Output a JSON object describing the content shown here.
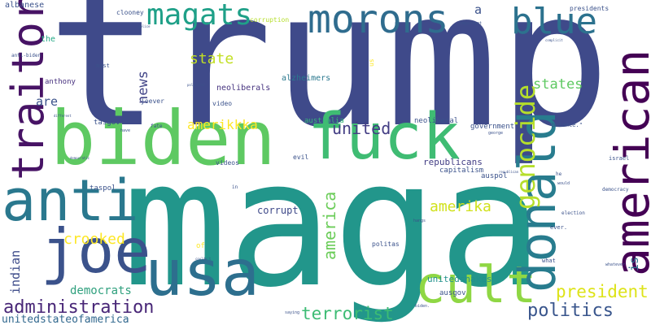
{
  "words": [
    {
      "text": "trump",
      "color": "#3f4a8a",
      "size": 230
    },
    {
      "text": "maga",
      "color": "#22968b",
      "size": 215
    },
    {
      "text": "biden",
      "color": "#5ec962",
      "size": 92
    },
    {
      "text": "fuck",
      "color": "#3fbc73",
      "size": 78
    },
    {
      "text": "usa",
      "color": "#2d6f8e",
      "size": 78
    },
    {
      "text": "joe",
      "color": "#3b528b",
      "size": 75
    },
    {
      "text": "anti",
      "color": "#2a788e",
      "size": 70
    },
    {
      "text": "cult",
      "color": "#8fd744",
      "size": 62
    },
    {
      "text": "donald",
      "color": "#287c8e",
      "size": 62
    },
    {
      "text": "american",
      "color": "#440154",
      "size": 58
    },
    {
      "text": "traitor",
      "color": "#471365",
      "size": 54
    },
    {
      "text": "morons",
      "color": "#2f6c8e",
      "size": 48
    },
    {
      "text": "blue",
      "color": "#2c728e",
      "size": 44
    },
    {
      "text": "magats",
      "color": "#1fa088",
      "size": 36
    },
    {
      "text": "genocide",
      "color": "#b5de2b",
      "size": 32
    },
    {
      "text": "administration",
      "color": "#482677",
      "size": 22
    },
    {
      "text": "politics",
      "color": "#39558c",
      "size": 22
    },
    {
      "text": "president",
      "color": "#dde318",
      "size": 21
    },
    {
      "text": "terrorist",
      "color": "#3dbc74",
      "size": 21
    },
    {
      "text": "america",
      "color": "#6ccd5a",
      "size": 20
    },
    {
      "text": "united",
      "color": "#433d84",
      "size": 20
    },
    {
      "text": "state",
      "color": "#c2df23",
      "size": 18
    },
    {
      "text": "amerika",
      "color": "#d0e11c",
      "size": 18
    },
    {
      "text": "crooked",
      "color": "#fde725",
      "size": 18
    },
    {
      "text": "news",
      "color": "#414487",
      "size": 17
    },
    {
      "text": "states",
      "color": "#5ec962",
      "size": 17
    },
    {
      "text": "amerikkka",
      "color": "#fde725",
      "size": 16
    },
    {
      "text": "indian",
      "color": "#3e4c8a",
      "size": 15
    },
    {
      "text": "are",
      "color": "#3b528b",
      "size": 15
    },
    {
      "text": "is",
      "color": "#2d718e",
      "size": 15
    },
    {
      "text": "democrats",
      "color": "#30a07e",
      "size": 14
    },
    {
      "text": "unitedstateofamerica",
      "color": "#31688e",
      "size": 13
    },
    {
      "text": "a",
      "color": "#3b528b",
      "size": 15
    },
    {
      "text": "corrupt",
      "color": "#3e4989",
      "size": 12
    },
    {
      "text": "republicans",
      "color": "#433e85",
      "size": 11
    },
    {
      "text": "unitedsnakes",
      "color": "#21918c",
      "size": 11
    },
    {
      "text": "alzheimers",
      "color": "#2a788e",
      "size": 10
    },
    {
      "text": "neoliberals",
      "color": "#46337f",
      "size": 10
    },
    {
      "text": "albanese",
      "color": "#3b528b",
      "size": 10
    },
    {
      "text": "the",
      "color": "#22a884",
      "size": 10
    },
    {
      "text": "anthony",
      "color": "#46307e",
      "size": 9
    },
    {
      "text": "tasgov",
      "color": "#3b528b",
      "size": 9
    },
    {
      "text": "taspol",
      "color": "#3b528b",
      "size": 9
    },
    {
      "text": "auspol",
      "color": "#3b528b",
      "size": 9
    },
    {
      "text": "ausgov",
      "color": "#3b528b",
      "size": 9
    },
    {
      "text": "government",
      "color": "#3b528b",
      "size": 9
    },
    {
      "text": "capitalism",
      "color": "#3b528b",
      "size": 9
    },
    {
      "text": "australia",
      "color": "#35b779",
      "size": 9
    },
    {
      "text": "neoliberal",
      "color": "#3b528b",
      "size": 9
    },
    {
      "text": "video",
      "color": "#3b528b",
      "size": 8
    },
    {
      "text": "videos",
      "color": "#3b528b",
      "size": 8
    },
    {
      "text": "evil",
      "color": "#3b528b",
      "size": 8
    },
    {
      "text": "clooney",
      "color": "#3b528b",
      "size": 8
    },
    {
      "text": "corruption",
      "color": "#b5de2b",
      "size": 8
    },
    {
      "text": "presidents",
      "color": "#3b528b",
      "size": 8
    },
    {
      "text": "joever",
      "color": "#3b528b",
      "size": 8
    },
    {
      "text": "most",
      "color": "#3b528b",
      "size": 7
    },
    {
      "text": "anti-biden",
      "color": "#3b528b",
      "size": 6
    },
    {
      "text": "politas",
      "color": "#3b528b",
      "size": 8
    },
    {
      "text": "of",
      "color": "#fde725",
      "size": 9
    },
    {
      "text": "what",
      "color": "#3b528b",
      "size": 7
    },
    {
      "text": "israel",
      "color": "#3b528b",
      "size": 7
    },
    {
      "text": "democracy",
      "color": "#3b528b",
      "size": 6
    },
    {
      "text": "balance.\"",
      "color": "#3b528b",
      "size": 7
    },
    {
      "text": "ever.",
      "color": "#3b528b",
      "size": 7
    },
    {
      "text": "election",
      "color": "#3b528b",
      "size": 6
    },
    {
      "text": "he",
      "color": "#3b528b",
      "size": 6
    },
    {
      "text": "would",
      "color": "#3b528b",
      "size": 5
    },
    {
      "text": "whatever",
      "color": "#3b528b",
      "size": 5
    },
    {
      "text": "fate",
      "color": "#3b528b",
      "size": 6
    },
    {
      "text": "have",
      "color": "#3b528b",
      "size": 5
    },
    {
      "text": "in",
      "color": "#3b528b",
      "size": 6
    },
    {
      "text": "us",
      "color": "#fde725",
      "size": 8
    },
    {
      "text": "hangs",
      "color": "#3b528b",
      "size": 5
    },
    {
      "text": "important",
      "color": "#3b528b",
      "size": 5
    },
    {
      "text": "biden.",
      "color": "#3b528b",
      "size": 5
    },
    {
      "text": "saying",
      "color": "#3b528b",
      "size": 5
    },
    {
      "text": "george",
      "color": "#3b528b",
      "size": 5
    },
    {
      "text": "republican",
      "color": "#3b528b",
      "size": 4
    },
    {
      "text": "political",
      "color": "#3b528b",
      "size": 4
    },
    {
      "text": "different",
      "color": "#3b528b",
      "size": 4
    },
    {
      "text": "couldn't",
      "color": "#3b528b",
      "size": 4
    },
    {
      "text": "police",
      "color": "#3b528b",
      "size": 4
    },
    {
      "text": "democratic",
      "color": "#3b528b",
      "size": 4
    },
    {
      "text": "complicit",
      "color": "#3b528b",
      "size": 4
    }
  ]
}
